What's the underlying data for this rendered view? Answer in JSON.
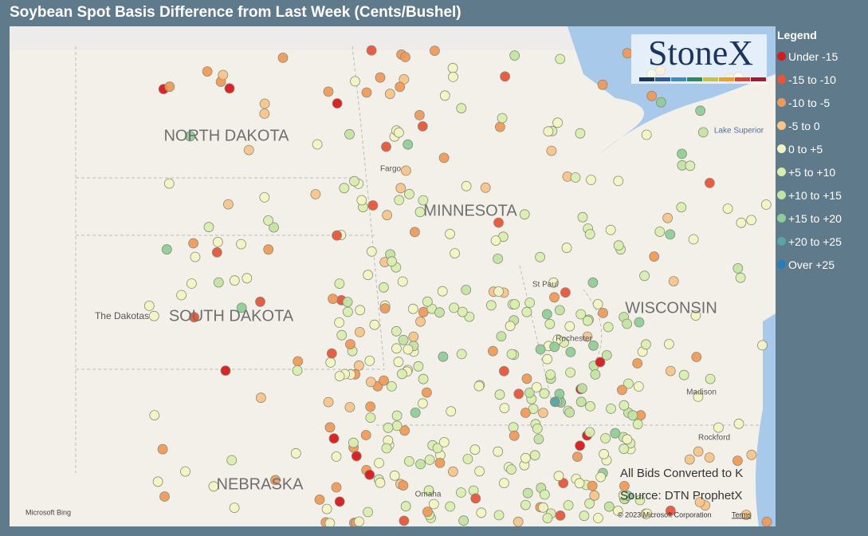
{
  "header": {
    "title": "Soybean Spot Basis Difference from Last Week (Cents/Bushel)"
  },
  "legend": {
    "title": "Legend",
    "items": [
      {
        "label": "Under -15",
        "color": "#d7191c"
      },
      {
        "label": "-15 to -10",
        "color": "#e8553a"
      },
      {
        "label": "-10 to -5",
        "color": "#f0995a"
      },
      {
        "label": "-5 to 0",
        "color": "#f7c48a"
      },
      {
        "label": "0 to +5",
        "color": "#f1f4c2"
      },
      {
        "label": "+5 to +10",
        "color": "#d8eeae"
      },
      {
        "label": "+10 to +15",
        "color": "#c3e3a2"
      },
      {
        "label": "+15 to +20",
        "color": "#8fcc98"
      },
      {
        "label": "+20 to +25",
        "color": "#5aa3a8"
      },
      {
        "label": "Over +25",
        "color": "#2b7bba"
      }
    ]
  },
  "map": {
    "states": [
      "NORTH DAKOTA",
      "MINNESOTA",
      "SOUTH DAKOTA",
      "WISCONSIN",
      "NEBRASKA"
    ],
    "places": [
      "The Dakotas",
      "Fargo",
      "St Paul",
      "Rochester",
      "Lake Superior",
      "Madison",
      "Rockford",
      "Omaha"
    ],
    "logo": "StoneX",
    "notes": [
      "All Bids Converted to K",
      "Source: DTN ProphetX"
    ],
    "attribution": [
      "Microsoft Bing",
      "© 2023 Microsoft Corporation",
      "Terms"
    ]
  }
}
